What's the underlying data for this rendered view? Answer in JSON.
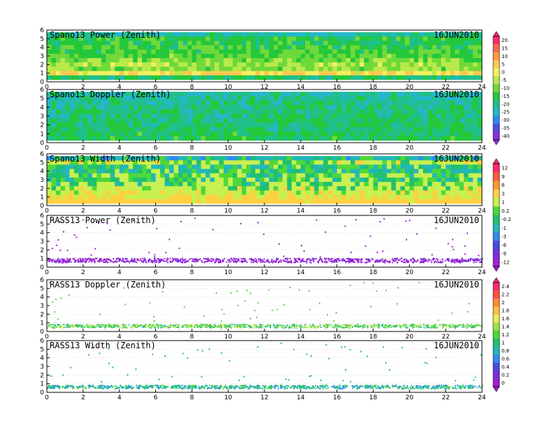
{
  "chart_data": [
    {
      "type": "heatmap",
      "title": "Spano13 Power (Zenith)",
      "date": "16JUN2010",
      "x_ticks": [
        "0",
        "2",
        "4",
        "6",
        "8",
        "10",
        "12",
        "14",
        "16",
        "18",
        "20",
        "22",
        "24"
      ],
      "xlim": [
        0,
        24
      ],
      "y_ticks": [
        "0",
        "1",
        "2",
        "3",
        "4",
        "5",
        "6"
      ],
      "ylim": [
        0,
        6
      ],
      "colorbar": [
        "20",
        "15",
        "10",
        "5",
        "0",
        "-5",
        "-10",
        "-15",
        "-20",
        "-25",
        "-30",
        "-35",
        "-40"
      ],
      "colorbar_group": 1,
      "rows": [
        {
          "height": 5.5,
          "value": -22
        },
        {
          "height": 5.0,
          "value": -15
        },
        {
          "height": 4.5,
          "value": -16
        },
        {
          "height": 4.0,
          "value": -14
        },
        {
          "height": 3.5,
          "value": -13
        },
        {
          "height": 3.0,
          "value": -12
        },
        {
          "height": 2.5,
          "value": -10
        },
        {
          "height": 2.0,
          "value": -6
        },
        {
          "height": 1.5,
          "value": -8
        },
        {
          "height": 1.0,
          "value": 2
        },
        {
          "height": 0.5,
          "value": -18
        }
      ]
    },
    {
      "type": "heatmap",
      "title": "Spano13 Doppler (Zenith)",
      "date": "16JUN2010",
      "x_ticks": [
        "0",
        "2",
        "4",
        "6",
        "8",
        "10",
        "12",
        "14",
        "16",
        "18",
        "20",
        "22",
        "24"
      ],
      "xlim": [
        0,
        24
      ],
      "y_ticks": [
        "0",
        "1",
        "2",
        "3",
        "4",
        "5",
        "6"
      ],
      "ylim": [
        0,
        6
      ],
      "colorbar_group": 1,
      "rows": [
        {
          "height": 5.5,
          "value": -22
        },
        {
          "height": 5.0,
          "value": -21
        },
        {
          "height": 4.5,
          "value": -20
        },
        {
          "height": 4.0,
          "value": -20
        },
        {
          "height": 3.5,
          "value": -19
        },
        {
          "height": 3.0,
          "value": -19
        },
        {
          "height": 2.5,
          "value": -18
        },
        {
          "height": 2.0,
          "value": -18
        },
        {
          "height": 1.5,
          "value": -18
        },
        {
          "height": 1.0,
          "value": -17
        },
        {
          "height": 0.5,
          "value": -17
        }
      ]
    },
    {
      "type": "heatmap",
      "title": "Spano13 Width (Zenith)",
      "date": "16JUN2010",
      "x_ticks": [
        "0",
        "2",
        "4",
        "6",
        "8",
        "10",
        "12",
        "14",
        "16",
        "18",
        "20",
        "22",
        "24"
      ],
      "xlim": [
        0,
        24
      ],
      "y_ticks": [
        "0",
        "1",
        "2",
        "3",
        "4",
        "5",
        "6"
      ],
      "ylim": [
        0,
        6
      ],
      "colorbar": [
        "12",
        "9",
        "6",
        "3",
        "1",
        "0.2",
        "-0.2",
        "-1",
        "-3",
        "-6",
        "-9",
        "-12"
      ],
      "colorbar_group": 2,
      "rows": [
        {
          "height": 5.5,
          "value": -1
        },
        {
          "height": 5.0,
          "value": 1
        },
        {
          "height": 4.5,
          "value": -0.5
        },
        {
          "height": 4.0,
          "value": -0.5
        },
        {
          "height": 3.5,
          "value": 0.2
        },
        {
          "height": 3.0,
          "value": 0.1
        },
        {
          "height": 2.5,
          "value": 0.5
        },
        {
          "height": 2.0,
          "value": 1
        },
        {
          "height": 1.5,
          "value": 1.5
        },
        {
          "height": 1.0,
          "value": 2
        },
        {
          "height": 0.5,
          "value": 3
        }
      ]
    },
    {
      "type": "scatter",
      "title": "RASS13 Power (Zenith)",
      "date": "16JUN2010",
      "x_ticks": [
        "0",
        "2",
        "4",
        "6",
        "8",
        "10",
        "12",
        "14",
        "16",
        "18",
        "20",
        "22",
        "24"
      ],
      "xlim": [
        0,
        24
      ],
      "y_ticks": [
        "0",
        "1",
        "2",
        "3",
        "4",
        "5",
        "6"
      ],
      "ylim": [
        0,
        6
      ],
      "colorbar_group": 2,
      "band": {
        "height_min": 0.6,
        "height_max": 1.1,
        "value": -11
      }
    },
    {
      "type": "scatter",
      "title": "RASS13 Doppler (Zenith)",
      "date": "16JUN2010",
      "x_ticks": [
        "0",
        "2",
        "4",
        "6",
        "8",
        "10",
        "12",
        "14",
        "16",
        "18",
        "20",
        "22",
        "24"
      ],
      "xlim": [
        0,
        24
      ],
      "y_ticks": [
        "0",
        "1",
        "2",
        "3",
        "4",
        "5",
        "6"
      ],
      "ylim": [
        0,
        6
      ],
      "colorbar": [
        "2.4",
        "2.2",
        "2",
        "1.8",
        "1.6",
        "1.4",
        "1.2",
        "1",
        "0.8",
        "0.6",
        "0.4",
        "0.2",
        "0"
      ],
      "colorbar_group": 3,
      "band": {
        "height_min": 0.5,
        "height_max": 0.9,
        "value": 1.2
      }
    },
    {
      "type": "scatter",
      "title": "RASS13 Width (Zenith)",
      "date": "16JUN2010",
      "x_ticks": [
        "0",
        "2",
        "4",
        "6",
        "8",
        "10",
        "12",
        "14",
        "16",
        "18",
        "20",
        "22",
        "24"
      ],
      "xlim": [
        0,
        24
      ],
      "y_ticks": [
        "0",
        "1",
        "2",
        "3",
        "4",
        "5",
        "6"
      ],
      "ylim": [
        0,
        6
      ],
      "colorbar_group": 3,
      "band": {
        "height_min": 0.5,
        "height_max": 0.9,
        "value": 0.9
      }
    }
  ],
  "colorbar_palettes": {
    "1": [
      "#ff2a6a",
      "#ff6a4a",
      "#ff9a40",
      "#ffc94f",
      "#f4ef60",
      "#b8e94a",
      "#6fd93a",
      "#24c83a",
      "#1fc08a",
      "#25b7c8",
      "#2a8cf0",
      "#4a4ae8",
      "#8a2ee0"
    ],
    "2": [
      "#ff2a6a",
      "#ff5a3a",
      "#ff9a30",
      "#ffd040",
      "#c8f050",
      "#4ed83a",
      "#1fc070",
      "#22b8b8",
      "#2f8cf0",
      "#4a4ae8",
      "#7a2ee0",
      "#a020d0"
    ],
    "3": [
      "#ff2a6a",
      "#ff5040",
      "#ff8a30",
      "#ffc040",
      "#f0ea50",
      "#9be24a",
      "#4ed83a",
      "#1fc070",
      "#22b8b8",
      "#2f8cf0",
      "#4a4ae8",
      "#7a2ee0",
      "#a020d0"
    ]
  }
}
